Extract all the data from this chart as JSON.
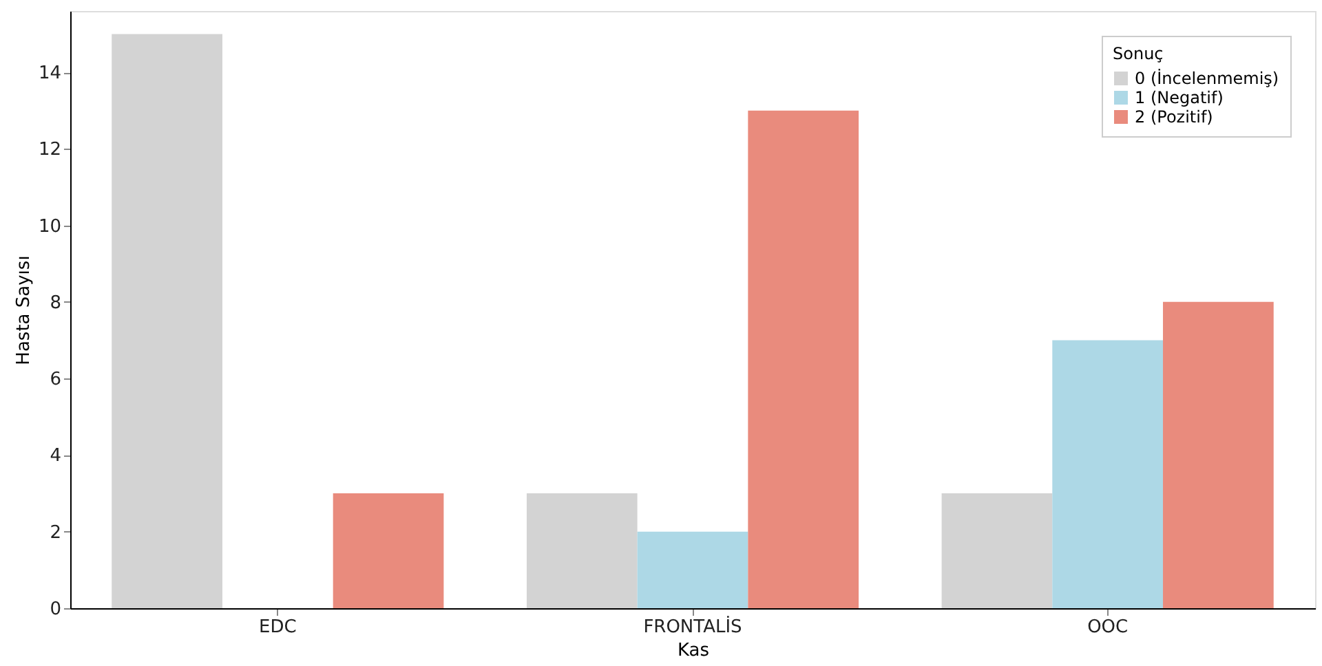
{
  "chart_data": {
    "type": "bar",
    "xlabel": "Kas",
    "ylabel": "Hasta Sayısı",
    "legend_title": "Sonuç",
    "categories": [
      "EDC",
      "FRONTALİS",
      "OOC"
    ],
    "series": [
      {
        "name": "0 (İncelenmemiş)",
        "color": "#d3d3d3",
        "values": [
          15,
          3,
          3
        ]
      },
      {
        "name": "1 (Negatif)",
        "color": "#add8e6",
        "values": [
          0,
          2,
          7
        ]
      },
      {
        "name": "2 (Pozitif)",
        "color": "#e98b7d",
        "values": [
          3,
          13,
          8
        ]
      }
    ],
    "ylim": [
      0,
      15.6
    ],
    "yticks": [
      0,
      2,
      4,
      6,
      8,
      10,
      12,
      14
    ],
    "grid": false,
    "legend": "top right"
  }
}
